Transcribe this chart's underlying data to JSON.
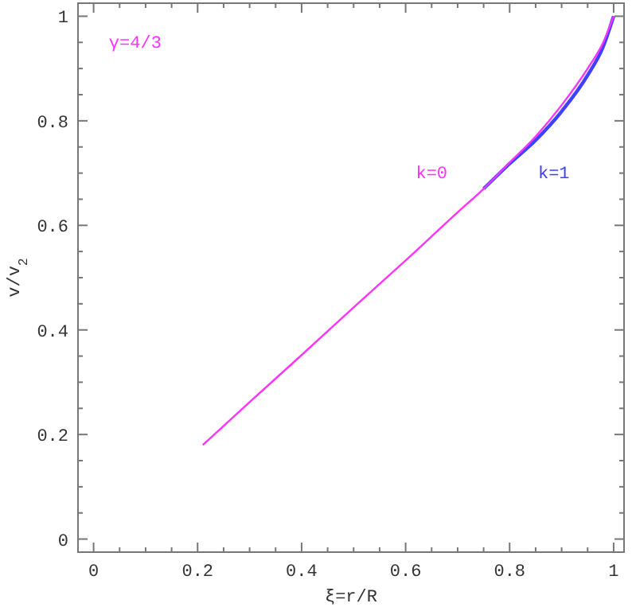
{
  "chart_data": {
    "type": "line",
    "xlabel": "ξ=r/R",
    "ylabel": "v/v$_{2}$",
    "annotations": [
      "γ=4/3"
    ],
    "xlim": [
      -0.03,
      1.02
    ],
    "ylim": [
      -0.025,
      1.025
    ],
    "xticks": [
      0,
      {
        "value": 0.05,
        "label": null
      },
      {
        "value": 0.1,
        "label": null
      },
      {
        "value": 0.15,
        "label": null
      },
      0.2,
      {
        "value": 0.25,
        "label": null
      },
      {
        "value": 0.3,
        "label": null
      },
      {
        "value": 0.35,
        "label": null
      },
      0.4,
      {
        "value": 0.45,
        "label": null
      },
      {
        "value": 0.5,
        "label": null
      },
      {
        "value": 0.55,
        "label": null
      },
      0.6,
      {
        "value": 0.65,
        "label": null
      },
      {
        "value": 0.7,
        "label": null
      },
      {
        "value": 0.75,
        "label": null
      },
      0.8,
      {
        "value": 0.85,
        "label": null
      },
      {
        "value": 0.9,
        "label": null
      },
      {
        "value": 0.95,
        "label": null
      },
      1
    ],
    "yticks": [
      0,
      {
        "value": 0.05,
        "label": null
      },
      {
        "value": 0.1,
        "label": null
      },
      {
        "value": 0.15,
        "label": null
      },
      0.2,
      {
        "value": 0.25,
        "label": null
      },
      {
        "value": 0.3,
        "label": null
      },
      {
        "value": 0.35,
        "label": null
      },
      0.4,
      {
        "value": 0.45,
        "label": null
      },
      {
        "value": 0.5,
        "label": null
      },
      {
        "value": 0.55,
        "label": null
      },
      0.6,
      {
        "value": 0.65,
        "label": null
      },
      {
        "value": 0.7,
        "label": null
      },
      {
        "value": 0.75,
        "label": null
      },
      0.8,
      {
        "value": 0.85,
        "label": null
      },
      {
        "value": 0.9,
        "label": null
      },
      {
        "value": 0.95,
        "label": null
      },
      1
    ],
    "grid": false,
    "marker": "none",
    "line_style": "solid",
    "series": [
      {
        "name": "k=1",
        "color": "#4040ff",
        "x": [
          0.75,
          0.8,
          0.85,
          0.9,
          0.95,
          0.98,
          1.0
        ],
        "values": [
          0.67,
          0.718,
          0.763,
          0.818,
          0.887,
          0.942,
          1.0
        ]
      },
      {
        "name": "k=0",
        "color": "#ff33ff",
        "x": [
          0.21,
          0.3,
          0.4,
          0.5,
          0.6,
          0.7,
          0.75,
          0.8,
          0.85,
          0.9,
          0.95,
          0.98,
          1.0
        ],
        "values": [
          0.18,
          0.262,
          0.352,
          0.443,
          0.533,
          0.625,
          0.67,
          0.72,
          0.77,
          0.83,
          0.9,
          0.95,
          1.0
        ]
      }
    ]
  }
}
